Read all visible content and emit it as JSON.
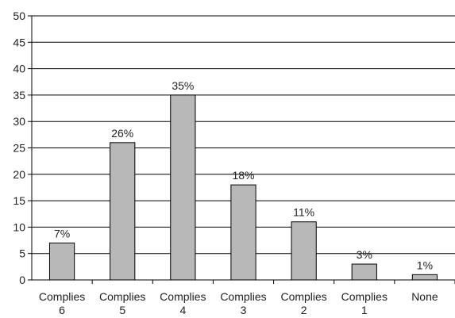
{
  "chart_data": {
    "type": "bar",
    "categories": [
      [
        "Complies",
        "6"
      ],
      [
        "Complies",
        "5"
      ],
      [
        "Complies",
        "4"
      ],
      [
        "Complies",
        "3"
      ],
      [
        "Complies",
        "2"
      ],
      [
        "Complies",
        "1"
      ],
      [
        "None"
      ]
    ],
    "values": [
      7,
      26,
      35,
      18,
      11,
      3,
      1
    ],
    "data_labels": [
      "7%",
      "26%",
      "35%",
      "18%",
      "11%",
      "3%",
      "1%"
    ],
    "title": "",
    "xlabel": "",
    "ylabel": "",
    "ylim": [
      0,
      50
    ],
    "yticks": [
      0,
      5,
      10,
      15,
      20,
      25,
      30,
      35,
      40,
      45,
      50
    ],
    "grid": "horizontal",
    "legend": "none",
    "colors": {
      "bar_fill": "#b8b8b8",
      "bar_stroke": "#000000",
      "grid": "#000000",
      "axis": "#000000"
    }
  }
}
